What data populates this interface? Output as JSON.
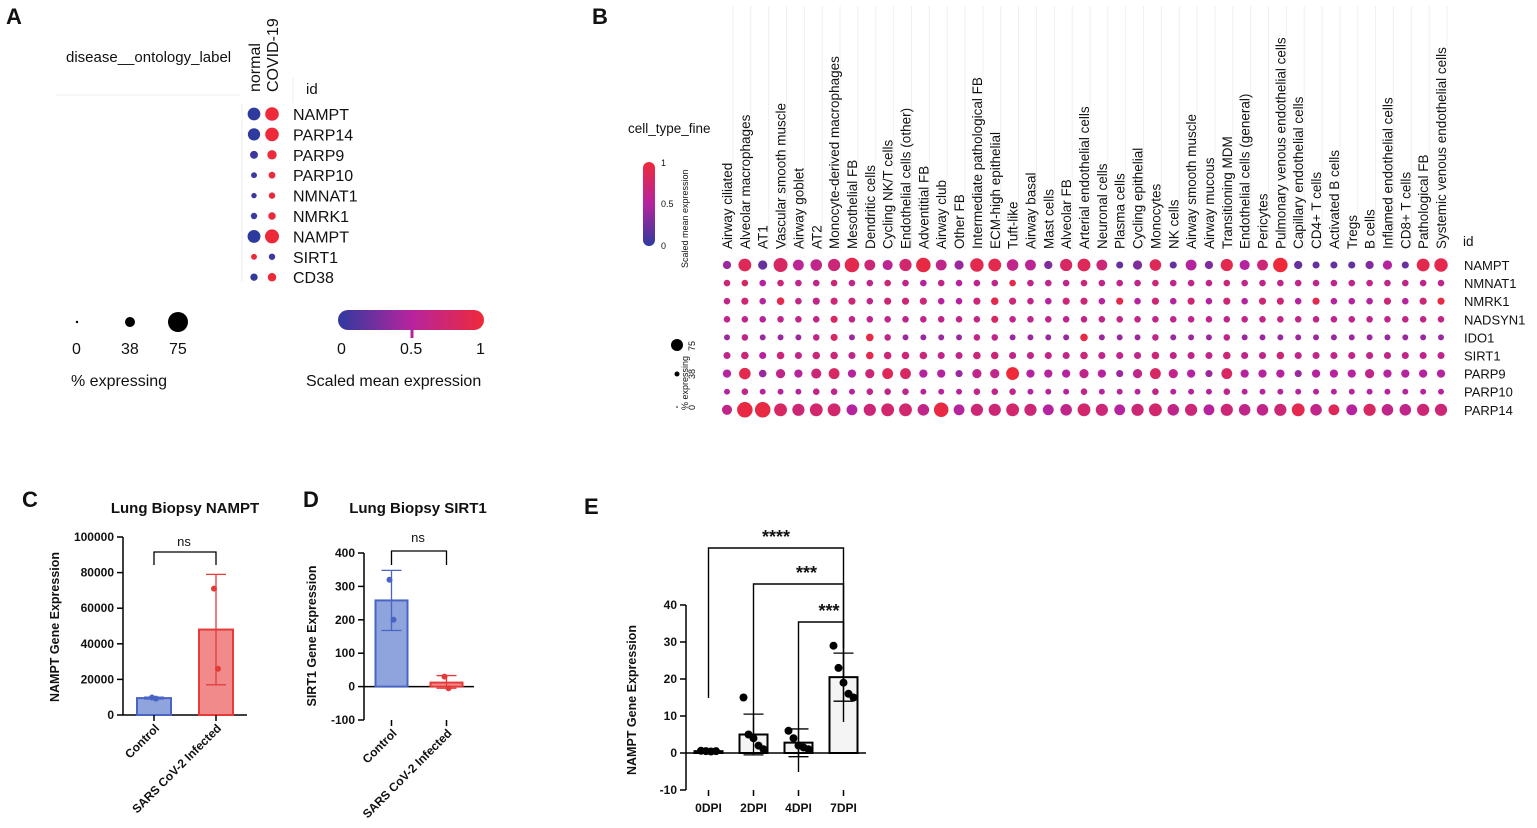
{
  "colors": {
    "low": "#2f3a9e",
    "mid": "#b5249e",
    "high": "#ee2a3a",
    "control_fill": "#8fa3dc",
    "control_stroke": "#4a64c4",
    "infected_fill": "#f18b8b",
    "infected_stroke": "#e53a3a",
    "bar_e_fill": "#f4f4f4"
  },
  "panels": {
    "A": {
      "letter": "A",
      "row_header_label": "disease__ontology_label",
      "columns": [
        "normal",
        "COVID-19"
      ],
      "id_header": "id",
      "genes": [
        "NAMPT",
        "PARP14",
        "PARP9",
        "PARP10",
        "NMNAT1",
        "NMRK1",
        "NAMPT",
        "SIRT1",
        "CD38"
      ],
      "size_pct": [
        [
          60,
          70
        ],
        [
          55,
          70
        ],
        [
          18,
          28
        ],
        [
          8,
          12
        ],
        [
          6,
          10
        ],
        [
          10,
          16
        ],
        [
          62,
          75
        ],
        [
          8,
          10
        ],
        [
          15,
          22
        ]
      ],
      "color_value": [
        [
          0.0,
          1.0
        ],
        [
          0.0,
          1.0
        ],
        [
          0.05,
          0.98
        ],
        [
          0.05,
          0.98
        ],
        [
          0.05,
          0.98
        ],
        [
          0.05,
          0.98
        ],
        [
          0.0,
          1.0
        ],
        [
          0.98,
          0.05
        ],
        [
          0.02,
          1.0
        ]
      ],
      "size_legend": {
        "values": [
          "0",
          "38",
          "75"
        ],
        "title": "% expressing"
      },
      "color_legend": {
        "ticks": [
          "0",
          "0.5",
          "1"
        ],
        "title": "Scaled mean expression"
      }
    },
    "B": {
      "letter": "B",
      "header_label": "cell_type_fine",
      "id_header": "id",
      "colorbar": {
        "title": "Scaled mean expression",
        "ticks": [
          "0",
          "0.5",
          "1"
        ]
      },
      "size_legend": {
        "title": "% expressing",
        "values": [
          "0",
          "38",
          "75"
        ]
      },
      "genes": [
        "NAMPT",
        "NMNAT1",
        "NMRK1",
        "NADSYN1",
        "IDO1",
        "SIRT1",
        "PARP9",
        "PARP10",
        "PARP14"
      ],
      "cell_types": [
        "Airway ciliated",
        "Alveolar macrophages",
        "AT1",
        "Vascular smooth muscle",
        "Airway goblet",
        "AT2",
        "Monocyte-derived macrophages",
        "Mesothelial FB",
        "Dendritic cells",
        "Cycling NK/T cells",
        "Endothelial cells (other)",
        "Adventitial FB",
        "Airway club",
        "Other FB",
        "Intermediate pathological FB",
        "ECM-high epithelial",
        "Tuft-like",
        "Airway basal",
        "Mast cells",
        "Alveolar FB",
        "Arterial endothelial cells",
        "Neuronal cells",
        "Plasma cells",
        "Cycling epithelial",
        "Monocytes",
        "NK cells",
        "Airway smooth muscle",
        "Airway mucous",
        "Transitioning MDM",
        "Endothelial cells (general)",
        "Pericytes",
        "Pulmonary venous endothelial cells",
        "Capillary endothelial cells",
        "CD4+ T cells",
        "Activated B cells",
        "Tregs",
        "B cells",
        "Inflamed endothelial cells",
        "CD8+ T cells",
        "Pathological FB",
        "Systemic venous endothelial cells"
      ],
      "size_pct": [
        [
          15,
          45,
          20,
          55,
          30,
          35,
          40,
          60,
          30,
          25,
          40,
          60,
          30,
          20,
          50,
          45,
          35,
          30,
          15,
          40,
          45,
          30,
          10,
          20,
          35,
          10,
          30,
          15,
          40,
          25,
          30,
          60,
          15,
          10,
          10,
          10,
          15,
          20,
          10,
          45,
          50
        ],
        [
          8,
          8,
          8,
          8,
          8,
          8,
          8,
          8,
          8,
          8,
          8,
          8,
          8,
          8,
          8,
          8,
          8,
          8,
          8,
          8,
          8,
          8,
          8,
          8,
          8,
          8,
          8,
          8,
          8,
          8,
          8,
          8,
          8,
          8,
          8,
          8,
          8,
          8,
          8,
          8,
          8
        ],
        [
          8,
          10,
          8,
          12,
          8,
          10,
          10,
          10,
          8,
          10,
          10,
          10,
          8,
          8,
          10,
          12,
          10,
          8,
          8,
          10,
          10,
          8,
          10,
          8,
          10,
          8,
          10,
          8,
          10,
          8,
          10,
          10,
          8,
          10,
          8,
          8,
          8,
          10,
          8,
          10,
          10
        ],
        [
          8,
          8,
          8,
          8,
          8,
          8,
          10,
          8,
          8,
          8,
          8,
          8,
          8,
          8,
          8,
          10,
          8,
          8,
          8,
          8,
          8,
          8,
          8,
          8,
          8,
          8,
          8,
          8,
          8,
          8,
          8,
          8,
          8,
          8,
          8,
          8,
          8,
          8,
          8,
          8,
          8
        ],
        [
          6,
          8,
          6,
          6,
          6,
          8,
          10,
          6,
          12,
          8,
          6,
          6,
          6,
          6,
          8,
          8,
          6,
          6,
          6,
          6,
          12,
          6,
          6,
          6,
          8,
          6,
          6,
          6,
          8,
          6,
          6,
          6,
          6,
          6,
          6,
          6,
          6,
          6,
          6,
          6,
          6
        ],
        [
          10,
          12,
          10,
          12,
          10,
          12,
          12,
          10,
          12,
          12,
          12,
          12,
          10,
          10,
          12,
          12,
          10,
          10,
          10,
          10,
          12,
          10,
          10,
          10,
          12,
          10,
          10,
          10,
          12,
          10,
          10,
          12,
          10,
          10,
          10,
          10,
          10,
          10,
          10,
          10,
          10
        ],
        [
          15,
          35,
          12,
          20,
          15,
          25,
          30,
          15,
          20,
          30,
          30,
          15,
          15,
          10,
          20,
          20,
          45,
          15,
          15,
          15,
          20,
          15,
          10,
          20,
          30,
          20,
          15,
          10,
          30,
          15,
          15,
          15,
          10,
          15,
          15,
          15,
          20,
          15,
          15,
          15,
          15
        ],
        [
          6,
          8,
          6,
          6,
          6,
          8,
          8,
          6,
          8,
          8,
          8,
          6,
          6,
          6,
          8,
          8,
          8,
          6,
          6,
          6,
          8,
          6,
          6,
          6,
          8,
          6,
          6,
          6,
          8,
          6,
          6,
          6,
          6,
          6,
          6,
          6,
          6,
          6,
          6,
          6,
          6
        ],
        [
          25,
          70,
          70,
          45,
          40,
          45,
          45,
          30,
          40,
          45,
          45,
          35,
          60,
          30,
          40,
          40,
          45,
          40,
          30,
          35,
          45,
          40,
          30,
          40,
          45,
          35,
          40,
          30,
          40,
          35,
          35,
          40,
          45,
          35,
          30,
          30,
          40,
          35,
          35,
          40,
          40
        ]
      ],
      "color_value": [
        [
          0.4,
          0.85,
          0.2,
          0.8,
          0.55,
          0.6,
          0.7,
          0.9,
          0.7,
          0.55,
          0.75,
          0.95,
          0.6,
          0.4,
          0.9,
          0.9,
          0.6,
          0.55,
          0.3,
          0.8,
          0.85,
          0.7,
          0.2,
          0.3,
          0.85,
          0.2,
          0.5,
          0.3,
          0.9,
          0.5,
          0.7,
          1.0,
          0.2,
          0.2,
          0.2,
          0.2,
          0.3,
          0.5,
          0.2,
          0.9,
          0.9
        ],
        [
          0.7,
          0.8,
          0.5,
          0.7,
          0.6,
          0.6,
          0.7,
          0.6,
          0.6,
          0.7,
          0.6,
          0.5,
          0.6,
          0.5,
          0.6,
          0.6,
          0.9,
          0.6,
          0.6,
          0.6,
          0.7,
          0.6,
          0.6,
          0.6,
          0.7,
          0.6,
          0.6,
          0.6,
          0.7,
          0.6,
          0.6,
          0.6,
          0.6,
          0.6,
          0.6,
          0.6,
          0.6,
          0.6,
          0.6,
          0.6,
          0.6
        ],
        [
          0.6,
          0.7,
          0.5,
          0.9,
          0.6,
          0.6,
          0.7,
          0.7,
          0.6,
          0.7,
          0.7,
          0.7,
          0.5,
          0.5,
          0.7,
          0.9,
          0.7,
          0.6,
          0.5,
          0.7,
          0.7,
          0.5,
          0.9,
          0.5,
          0.7,
          0.5,
          0.7,
          0.5,
          0.7,
          0.5,
          0.7,
          0.7,
          0.5,
          0.9,
          0.5,
          0.5,
          0.5,
          0.7,
          0.5,
          0.7,
          0.95
        ],
        [
          0.6,
          0.6,
          0.5,
          0.6,
          0.6,
          0.6,
          0.8,
          0.6,
          0.6,
          0.6,
          0.6,
          0.6,
          0.6,
          0.6,
          0.6,
          0.8,
          0.6,
          0.6,
          0.6,
          0.6,
          0.6,
          0.6,
          0.6,
          0.6,
          0.6,
          0.6,
          0.6,
          0.6,
          0.6,
          0.6,
          0.6,
          0.6,
          0.6,
          0.6,
          0.6,
          0.6,
          0.6,
          0.6,
          0.6,
          0.6,
          0.6
        ],
        [
          0.4,
          0.6,
          0.4,
          0.4,
          0.4,
          0.6,
          0.8,
          0.4,
          0.95,
          0.6,
          0.4,
          0.4,
          0.4,
          0.4,
          0.6,
          0.6,
          0.4,
          0.4,
          0.4,
          0.4,
          0.95,
          0.4,
          0.4,
          0.4,
          0.6,
          0.4,
          0.4,
          0.4,
          0.6,
          0.4,
          0.4,
          0.4,
          0.4,
          0.4,
          0.4,
          0.4,
          0.4,
          0.4,
          0.4,
          0.4,
          0.4
        ],
        [
          0.6,
          0.7,
          0.5,
          0.7,
          0.6,
          0.7,
          0.7,
          0.6,
          0.9,
          0.7,
          0.7,
          0.7,
          0.6,
          0.6,
          0.7,
          0.7,
          0.6,
          0.6,
          0.6,
          0.6,
          0.7,
          0.6,
          0.6,
          0.6,
          0.7,
          0.6,
          0.6,
          0.6,
          0.7,
          0.6,
          0.6,
          0.7,
          0.6,
          0.6,
          0.6,
          0.6,
          0.6,
          0.6,
          0.6,
          0.6,
          0.6
        ],
        [
          0.5,
          0.9,
          0.4,
          0.6,
          0.5,
          0.7,
          0.8,
          0.5,
          0.7,
          0.85,
          0.8,
          0.5,
          0.5,
          0.4,
          0.6,
          0.6,
          1.0,
          0.5,
          0.5,
          0.5,
          0.6,
          0.5,
          0.4,
          0.6,
          0.8,
          0.6,
          0.5,
          0.4,
          0.8,
          0.5,
          0.5,
          0.5,
          0.4,
          0.5,
          0.5,
          0.5,
          0.6,
          0.5,
          0.5,
          0.5,
          0.5
        ],
        [
          0.5,
          0.6,
          0.5,
          0.5,
          0.5,
          0.6,
          0.6,
          0.5,
          0.6,
          0.6,
          0.6,
          0.5,
          0.5,
          0.5,
          0.6,
          0.6,
          0.6,
          0.5,
          0.5,
          0.5,
          0.6,
          0.5,
          0.5,
          0.5,
          0.6,
          0.5,
          0.5,
          0.5,
          0.6,
          0.5,
          0.5,
          0.5,
          0.5,
          0.5,
          0.5,
          0.5,
          0.5,
          0.5,
          0.5,
          0.5,
          0.5
        ],
        [
          0.6,
          0.95,
          0.95,
          0.8,
          0.7,
          0.75,
          0.75,
          0.5,
          0.7,
          0.75,
          0.75,
          0.6,
          0.95,
          0.5,
          0.7,
          0.7,
          0.75,
          0.7,
          0.5,
          0.6,
          0.75,
          0.7,
          0.5,
          0.7,
          0.75,
          0.6,
          0.7,
          0.5,
          0.7,
          0.6,
          0.6,
          0.7,
          0.9,
          0.6,
          0.85,
          0.5,
          0.8,
          0.6,
          0.6,
          0.7,
          0.7
        ]
      ]
    },
    "C": {
      "letter": "C",
      "title": "Lung Biopsy NAMPT",
      "ylabel": "NAMPT Gene Expression",
      "y_ticks": [
        "0",
        "20000",
        "40000",
        "60000",
        "80000",
        "100000"
      ],
      "ns_label": "ns"
    },
    "D": {
      "letter": "D",
      "title": "Lung Biopsy SIRT1",
      "ylabel": "SIRT1 Gene Expression",
      "y_ticks": [
        "-100",
        "0",
        "100",
        "200",
        "300",
        "400"
      ],
      "ns_label": "ns"
    },
    "E": {
      "letter": "E",
      "ylabel": "NAMPT Gene Expression",
      "y_ticks": [
        "-10",
        "0",
        "10",
        "20",
        "30",
        "40"
      ],
      "sig_labels": [
        "****",
        "***",
        "***"
      ]
    }
  },
  "chart_data": [
    {
      "panel": "C",
      "type": "bar",
      "title": "Lung Biopsy NAMPT",
      "xlabel": "",
      "ylabel": "NAMPT Gene Expression",
      "categories": [
        "Control",
        "SARS CoV-2 Infected"
      ],
      "values": [
        9500,
        48000
      ],
      "error": [
        [
          9000,
          10000
        ],
        [
          17000,
          79000
        ]
      ],
      "points": [
        [
          9800,
          9200
        ],
        [
          71000,
          26000
        ]
      ],
      "ylim": [
        0,
        100000
      ],
      "annotation": "ns"
    },
    {
      "panel": "D",
      "type": "bar",
      "title": "Lung Biopsy SIRT1",
      "xlabel": "",
      "ylabel": "SIRT1 Gene Expression",
      "categories": [
        "Control",
        "SARS CoV-2 Infected"
      ],
      "values": [
        258,
        12
      ],
      "error": [
        [
          168,
          348
        ],
        [
          -5,
          33
        ]
      ],
      "points": [
        [
          320,
          200
        ],
        [
          30,
          -5
        ]
      ],
      "ylim": [
        -100,
        400
      ],
      "annotation": "ns"
    },
    {
      "panel": "E",
      "type": "bar",
      "title": "",
      "xlabel": "",
      "ylabel": "NAMPT Gene Expression",
      "categories": [
        "0DPI",
        "2DPI",
        "4DPI",
        "7DPI"
      ],
      "values": [
        0.5,
        5,
        2.8,
        20.5
      ],
      "error": [
        [
          0.2,
          0.8
        ],
        [
          -0.5,
          10.5
        ],
        [
          -1,
          6.5
        ],
        [
          14,
          27
        ]
      ],
      "points": [
        [
          0.6,
          0.5,
          0.4,
          0.5
        ],
        [
          15,
          5,
          4,
          2,
          1
        ],
        [
          6,
          4,
          2,
          1.5,
          1
        ],
        [
          29,
          23,
          19,
          16,
          15
        ]
      ],
      "ylim": [
        -10,
        40
      ],
      "comparisons": [
        {
          "from": "0DPI",
          "to": "7DPI",
          "label": "****"
        },
        {
          "from": "2DPI",
          "to": "7DPI",
          "label": "***"
        },
        {
          "from": "4DPI",
          "to": "7DPI",
          "label": "***"
        }
      ]
    }
  ]
}
